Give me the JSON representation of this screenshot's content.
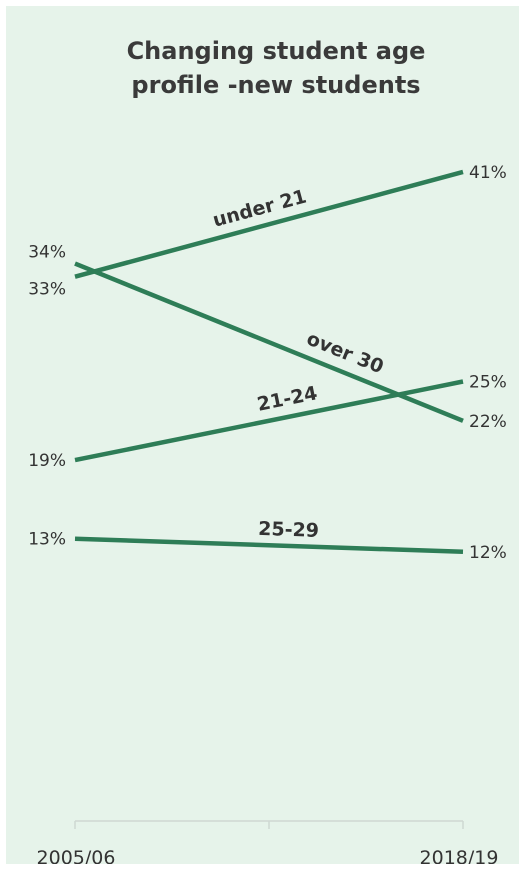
{
  "chart_data": {
    "type": "line",
    "title_lines": [
      "Changing student age",
      "profile -new students"
    ],
    "categories": [
      "2005/06",
      "2018/19"
    ],
    "value_format": "{v}%",
    "series": [
      {
        "name": "under 21",
        "values": [
          33,
          41
        ]
      },
      {
        "name": "over 30",
        "values": [
          34,
          22
        ]
      },
      {
        "name": "21-24",
        "values": [
          19,
          25
        ]
      },
      {
        "name": "25-29",
        "values": [
          13,
          12
        ]
      }
    ],
    "ylim": [
      0,
      45
    ],
    "grid": false,
    "line_color": "#2e7d57"
  }
}
